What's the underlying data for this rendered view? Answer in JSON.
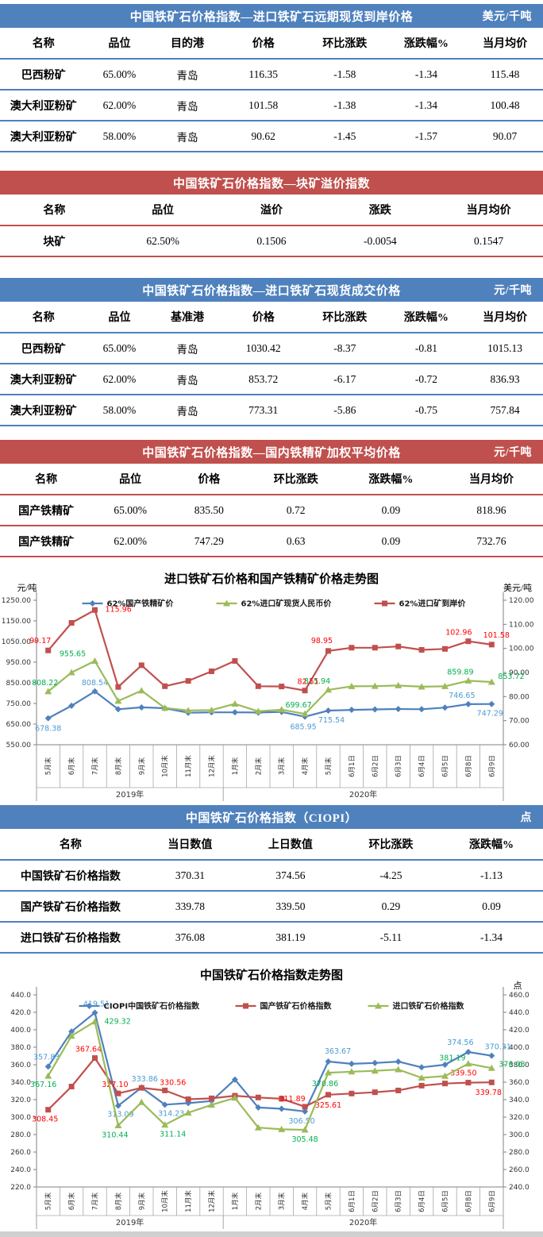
{
  "theme": {
    "blue": "#4f81bd",
    "red": "#c0504d",
    "axis_gray": "#808080",
    "cell_gray": "#a6a6a6",
    "label_blue": "#4a9bd4",
    "label_red": "#ff0000",
    "label_green": "#00b050"
  },
  "tables": [
    {
      "id": "t1",
      "theme": "blue",
      "title": "中国铁矿石价格指数—进口铁矿石远期现货到岸价格",
      "unit": "美元/千吨",
      "columns": [
        "名称",
        "品位",
        "目的港",
        "价格",
        "环比涨跌",
        "涨跌幅%",
        "当月均价"
      ],
      "rows": [
        [
          "巴西粉矿",
          "65.00%",
          "青岛",
          "116.35",
          "-1.58",
          "-1.34",
          "115.48"
        ],
        [
          "澳大利亚粉矿",
          "62.00%",
          "青岛",
          "101.58",
          "-1.38",
          "-1.34",
          "100.48"
        ],
        [
          "澳大利亚粉矿",
          "58.00%",
          "青岛",
          "90.62",
          "-1.45",
          "-1.57",
          "90.07"
        ]
      ]
    },
    {
      "id": "t2",
      "theme": "red",
      "title": "中国铁矿石价格指数—块矿溢价指数",
      "unit": "",
      "columns": [
        "名称",
        "品位",
        "溢价",
        "涨跌",
        "当月均价"
      ],
      "rows": [
        [
          "块矿",
          "62.50%",
          "0.1506",
          "-0.0054",
          "0.1547"
        ]
      ]
    },
    {
      "id": "t3",
      "theme": "blue",
      "title": "中国铁矿石价格指数—进口铁矿石现货成交价格",
      "unit": "元/千吨",
      "columns": [
        "名称",
        "品位",
        "基准港",
        "价格",
        "环比涨跌",
        "涨跌幅%",
        "当月均价"
      ],
      "rows": [
        [
          "巴西粉矿",
          "65.00%",
          "青岛",
          "1030.42",
          "-8.37",
          "-0.81",
          "1015.13"
        ],
        [
          "澳大利亚粉矿",
          "62.00%",
          "青岛",
          "853.72",
          "-6.17",
          "-0.72",
          "836.93"
        ],
        [
          "澳大利亚粉矿",
          "58.00%",
          "青岛",
          "773.31",
          "-5.86",
          "-0.75",
          "757.84"
        ]
      ]
    },
    {
      "id": "t4",
      "theme": "red",
      "title": "中国铁矿石价格指数—国内铁精矿加权平均价格",
      "unit": "元/千吨",
      "columns": [
        "名称",
        "品位",
        "价格",
        "环比涨跌",
        "涨跌幅%",
        "当月均价"
      ],
      "rows": [
        [
          "国产铁精矿",
          "65.00%",
          "835.50",
          "0.72",
          "0.09",
          "818.96"
        ],
        [
          "国产铁精矿",
          "62.00%",
          "747.29",
          "0.63",
          "0.09",
          "732.76"
        ]
      ]
    },
    {
      "id": "t5",
      "theme": "blue",
      "title": "中国铁矿石价格指数（CIOPI）",
      "unit": "点",
      "columns": [
        "名称",
        "当日数值",
        "上日数值",
        "环比涨跌",
        "涨跌幅%"
      ],
      "rows": [
        [
          "中国铁矿石价格指数",
          "370.31",
          "374.56",
          "-4.25",
          "-1.13"
        ],
        [
          "国产铁矿石价格指数",
          "339.78",
          "339.50",
          "0.29",
          "0.09"
        ],
        [
          "进口铁矿石价格指数",
          "376.08",
          "381.19",
          "-5.11",
          "-1.34"
        ]
      ]
    }
  ],
  "charts": [
    {
      "type": "line",
      "title": "进口铁矿石价格和国产铁精矿价格走势图",
      "left_axis": {
        "unit": "元/吨",
        "min": 550,
        "max": 1250,
        "step": 100,
        "dec": 2
      },
      "right_axis": {
        "unit": "美元/吨",
        "min": 60,
        "max": 120,
        "step": 10,
        "dec": 2
      },
      "categories": [
        "5月末",
        "6月末",
        "7月末",
        "8月末",
        "9月末",
        "10月末",
        "11月末",
        "12月末",
        "1月末",
        "2月末",
        "3月末",
        "4月末",
        "5月末",
        "6月1日",
        "6月2日",
        "6月3日",
        "6月4日",
        "6月5日",
        "6月8日",
        "6月9日"
      ],
      "groups": [
        {
          "label": "2019年",
          "span": 8
        },
        {
          "label": "2020年",
          "span": 12
        }
      ],
      "series": [
        {
          "name": "62%国产铁精矿价",
          "color": "#4f81bd",
          "label_color": "#4a9bd4",
          "marker": "diamond",
          "axis": "left",
          "values": [
            678.38,
            739,
            808.54,
            722,
            731,
            727,
            705,
            707,
            707,
            706,
            709,
            685.95,
            715.54,
            719,
            721,
            723,
            722,
            730,
            746.65,
            747.29
          ],
          "labels": [
            {
              "i": 0,
              "t": "678.38",
              "dx": 0,
              "dy": 16
            },
            {
              "i": 2,
              "t": "808.54",
              "dx": 0,
              "dy": -8
            },
            {
              "i": 11,
              "t": "685.95",
              "dx": -2,
              "dy": 16
            },
            {
              "i": 12,
              "t": "715.54",
              "dx": 4,
              "dy": 15
            },
            {
              "i": 18,
              "t": "746.65",
              "dx": -8,
              "dy": -8
            },
            {
              "i": 19,
              "t": "747.29",
              "dx": -2,
              "dy": 15
            }
          ]
        },
        {
          "name": "62%进口矿现货人民币价",
          "color": "#9bbb59",
          "label_color": "#00b050",
          "marker": "triangle",
          "axis": "left",
          "values": [
            808.22,
            900,
            955.65,
            762,
            812,
            728,
            716,
            718,
            748,
            712,
            720,
            699.67,
            815.94,
            833,
            834,
            837,
            831,
            833,
            859.89,
            853.72
          ],
          "labels": [
            {
              "i": 0,
              "t": "808.22",
              "dx": -4,
              "dy": -8
            },
            {
              "i": 2,
              "t": "955.65",
              "dx": -28,
              "dy": -6
            },
            {
              "i": 11,
              "t": "699.67",
              "dx": -8,
              "dy": -8
            },
            {
              "i": 12,
              "t": "815.94",
              "dx": -14,
              "dy": -8
            },
            {
              "i": 18,
              "t": "859.89",
              "dx": -10,
              "dy": -8
            },
            {
              "i": 19,
              "t": "853.72",
              "dx": 8,
              "dy": -4,
              "a": "start"
            }
          ]
        },
        {
          "name": "62%进口矿到岸价",
          "color": "#c0504d",
          "label_color": "#ff0000",
          "marker": "square",
          "axis": "right",
          "values": [
            99.17,
            110.6,
            115.96,
            84.0,
            93.0,
            84.3,
            86.5,
            90.5,
            94.8,
            84.3,
            84.2,
            82.51,
            98.95,
            100.3,
            100.3,
            100.8,
            99.4,
            99.8,
            102.96,
            101.58
          ],
          "labels": [
            {
              "i": 0,
              "t": "99.17",
              "dx": -10,
              "dy": -9
            },
            {
              "i": 2,
              "t": "115.96",
              "dx": 13,
              "dy": 2,
              "a": "start"
            },
            {
              "i": 11,
              "t": "82.51",
              "dx": 4,
              "dy": -8
            },
            {
              "i": 12,
              "t": "98.95",
              "dx": -8,
              "dy": -10
            },
            {
              "i": 18,
              "t": "102.96",
              "dx": -12,
              "dy": -8
            },
            {
              "i": 19,
              "t": "101.58",
              "dx": 6,
              "dy": -9
            }
          ]
        }
      ]
    },
    {
      "type": "line",
      "title": "中国铁矿石价格指数走势图",
      "left_axis": {
        "unit": "",
        "min": 220,
        "max": 440,
        "step": 20,
        "dec": 1
      },
      "right_axis": {
        "unit": "点",
        "min": 240,
        "max": 460,
        "step": 20,
        "dec": 1
      },
      "categories": [
        "5月末",
        "6月末",
        "7月末",
        "8月末",
        "9月末",
        "10月末",
        "11月末",
        "12月末",
        "1月末",
        "2月末",
        "3月末",
        "4月末",
        "5月末",
        "6月1日",
        "6月2日",
        "6月3日",
        "6月4日",
        "6月5日",
        "6月8日",
        "6月9日"
      ],
      "groups": [
        {
          "label": "2019年",
          "span": 8
        },
        {
          "label": "2020年",
          "span": 12
        }
      ],
      "series": [
        {
          "name": "CIOPI中国铁矿石价格指数",
          "color": "#4f81bd",
          "label_color": "#4a9bd4",
          "marker": "diamond",
          "axis": "left",
          "values": [
            357.83,
            398,
            419.51,
            313.09,
            333.86,
            314.23,
            316,
            318.5,
            343,
            311,
            309.5,
            306.5,
            363.67,
            361,
            362,
            363.5,
            357,
            360,
            374.56,
            370.31
          ],
          "labels": [
            {
              "i": 0,
              "t": "357.83",
              "dx": -2,
              "dy": -9
            },
            {
              "i": 2,
              "t": "419.51",
              "dx": 2,
              "dy": -8
            },
            {
              "i": 3,
              "t": "313.09",
              "dx": 3,
              "dy": 14
            },
            {
              "i": 4,
              "t": "333.86",
              "dx": 4,
              "dy": -8
            },
            {
              "i": 5,
              "t": "314.23",
              "dx": 8,
              "dy": 14
            },
            {
              "i": 11,
              "t": "306.50",
              "dx": -4,
              "dy": 15
            },
            {
              "i": 12,
              "t": "363.67",
              "dx": 12,
              "dy": -10
            },
            {
              "i": 18,
              "t": "374.56",
              "dx": -10,
              "dy": -9
            },
            {
              "i": 19,
              "t": "370.31",
              "dx": 8,
              "dy": -8
            }
          ]
        },
        {
          "name": "国产铁矿石价格指数",
          "color": "#c0504d",
          "label_color": "#ff0000",
          "marker": "square",
          "axis": "left",
          "values": [
            308.45,
            335,
            367.64,
            327.1,
            333.5,
            330.56,
            320.5,
            321.5,
            324.5,
            322.5,
            321,
            311.89,
            325.61,
            327,
            328.5,
            330.5,
            336,
            338.5,
            339.5,
            339.78
          ],
          "labels": [
            {
              "i": 0,
              "t": "308.45",
              "dx": -4,
              "dy": 15
            },
            {
              "i": 2,
              "t": "367.64",
              "dx": -8,
              "dy": -8
            },
            {
              "i": 3,
              "t": "327.10",
              "dx": -4,
              "dy": -8
            },
            {
              "i": 5,
              "t": "330.56",
              "dx": 10,
              "dy": -7
            },
            {
              "i": 11,
              "t": "311.89",
              "dx": -16,
              "dy": -7
            },
            {
              "i": 12,
              "t": "325.61",
              "dx": 0,
              "dy": 16
            },
            {
              "i": 18,
              "t": "339.50",
              "dx": -6,
              "dy": -9
            },
            {
              "i": 19,
              "t": "339.78",
              "dx": -4,
              "dy": 16
            }
          ]
        },
        {
          "name": "进口铁矿石价格指数",
          "color": "#9bbb59",
          "label_color": "#00b050",
          "marker": "triangle",
          "axis": "right",
          "values": [
            367.16,
            413,
            429.32,
            310.44,
            337,
            311.14,
            325,
            334,
            342,
            308,
            306,
            305.48,
            370.86,
            372,
            373,
            374.5,
            365,
            367,
            381.19,
            376.08
          ],
          "labels": [
            {
              "i": 0,
              "t": "367.16",
              "dx": -6,
              "dy": 14
            },
            {
              "i": 2,
              "t": "429.32",
              "dx": 12,
              "dy": 3,
              "a": "start"
            },
            {
              "i": 3,
              "t": "310.44",
              "dx": -4,
              "dy": 15
            },
            {
              "i": 5,
              "t": "311.14",
              "dx": 10,
              "dy": 15
            },
            {
              "i": 11,
              "t": "305.48",
              "dx": 0,
              "dy": 15
            },
            {
              "i": 12,
              "t": "370.86",
              "dx": -4,
              "dy": 17
            },
            {
              "i": 18,
              "t": "381.19",
              "dx": -20,
              "dy": -4
            },
            {
              "i": 19,
              "t": "376.08",
              "dx": 9,
              "dy": -2,
              "a": "start"
            }
          ]
        }
      ]
    }
  ]
}
